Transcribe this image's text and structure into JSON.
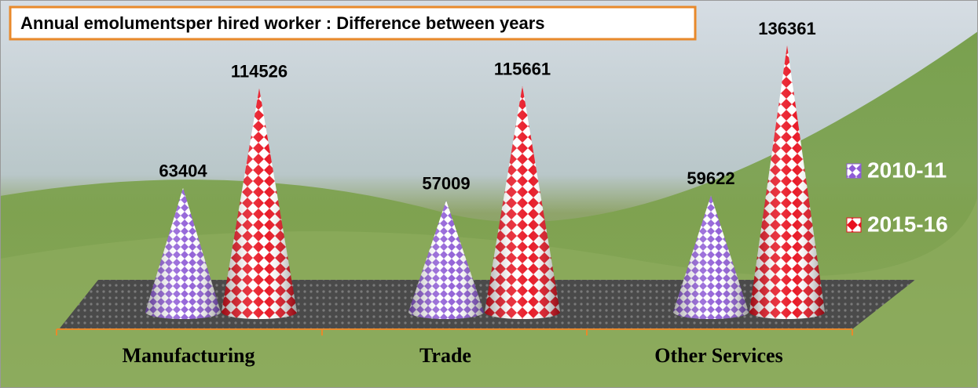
{
  "chart_data": {
    "type": "cone",
    "title": "Annual emolumentsper hired worker : Difference between years",
    "categories": [
      "Manufacturing",
      "Trade",
      "Other Services"
    ],
    "series": [
      {
        "name": "2010-11",
        "color": "#8e5bd6",
        "values": [
          63404,
          57009,
          59622
        ]
      },
      {
        "name": "2015-16",
        "color": "#e8101e",
        "values": [
          114526,
          115661,
          136361
        ]
      }
    ],
    "legend": "right"
  }
}
